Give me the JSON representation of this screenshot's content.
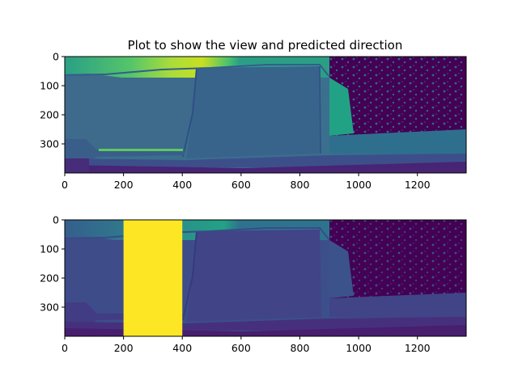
{
  "chart_data": [
    {
      "type": "heatmap",
      "title": "Plot to show the view and predicted direction",
      "xlabel": "",
      "ylabel": "",
      "image_size": [
        1366,
        400
      ],
      "xlim": [
        0,
        1366
      ],
      "ylim": [
        400,
        0
      ],
      "x_ticks": [
        0,
        200,
        400,
        600,
        800,
        1000,
        1200
      ],
      "y_ticks": [
        0,
        100,
        200,
        300
      ],
      "colormap": "viridis",
      "content": "depth view"
    },
    {
      "type": "heatmap",
      "title": "",
      "xlabel": "",
      "ylabel": "",
      "image_size": [
        1366,
        400
      ],
      "xlim": [
        0,
        1366
      ],
      "ylim": [
        400,
        0
      ],
      "x_ticks": [
        0,
        200,
        400,
        600,
        800,
        1000,
        1200
      ],
      "y_ticks": [
        0,
        100,
        200,
        300
      ],
      "colormap": "viridis",
      "content": "depth view with predicted direction",
      "highlight": {
        "x_start": 200,
        "x_end": 400,
        "color": "#fde725"
      }
    }
  ],
  "colors": {
    "dark": "#440154",
    "blue": "#3b528b",
    "teal": "#21918c",
    "green": "#5ec962",
    "yellow": "#fde725"
  }
}
